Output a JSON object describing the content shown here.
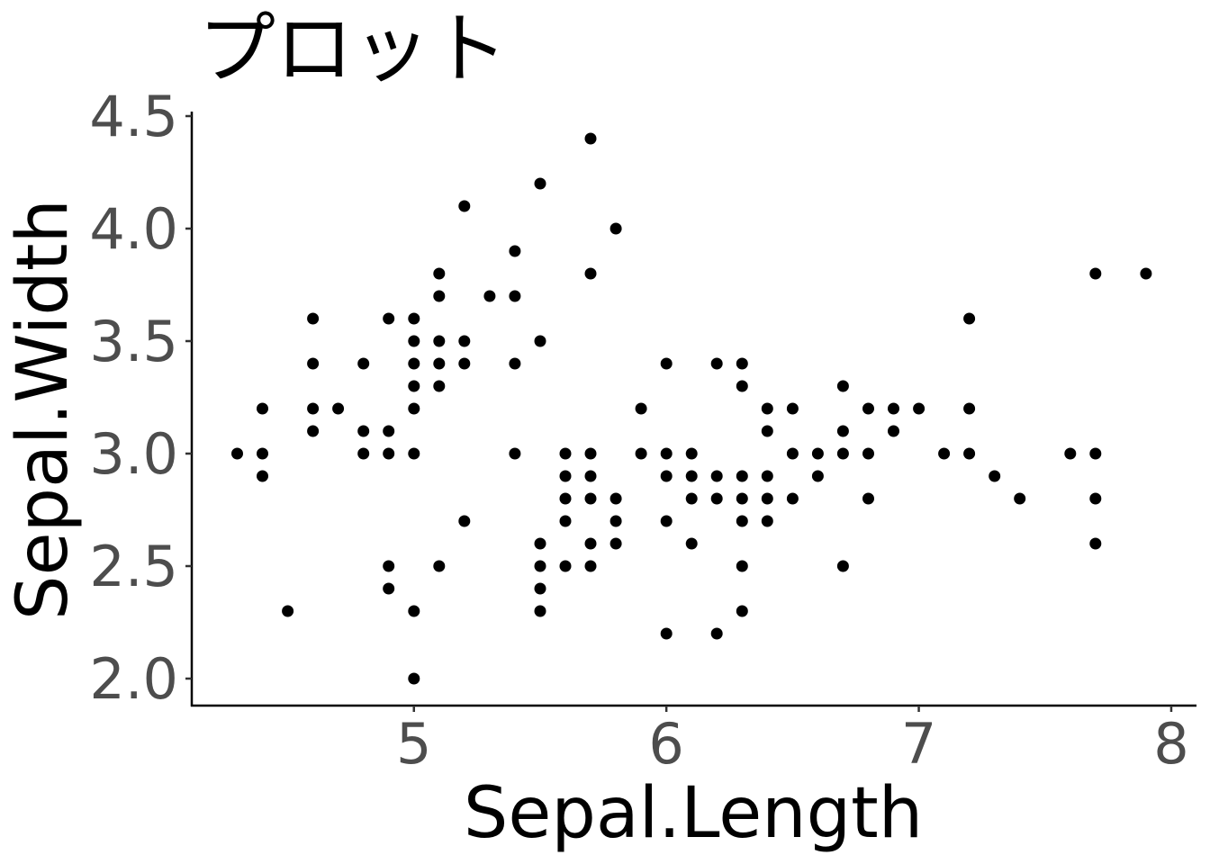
{
  "chart_data": {
    "type": "scatter",
    "title": "プロット",
    "xlabel": "Sepal.Length",
    "ylabel": "Sepal.Width",
    "xlim": [
      4.12,
      8.1
    ],
    "ylim": [
      1.88,
      4.52
    ],
    "x_ticks": [
      5,
      6,
      7,
      8
    ],
    "y_ticks": [
      2.0,
      2.5,
      3.0,
      3.5,
      4.0,
      4.5
    ],
    "x_tick_labels": [
      "5",
      "6",
      "7",
      "8"
    ],
    "y_tick_labels": [
      "2.0",
      "2.5",
      "3.0",
      "3.5",
      "4.0",
      "4.5"
    ],
    "grid": false,
    "point_color": "#000000",
    "points": [
      [
        4.3,
        3.0
      ],
      [
        4.4,
        3.2
      ],
      [
        4.4,
        3.0
      ],
      [
        4.4,
        2.9
      ],
      [
        4.5,
        2.3
      ],
      [
        4.6,
        3.6
      ],
      [
        4.6,
        3.4
      ],
      [
        4.6,
        3.2
      ],
      [
        4.6,
        3.1
      ],
      [
        4.7,
        3.2
      ],
      [
        4.8,
        3.4
      ],
      [
        4.8,
        3.1
      ],
      [
        4.8,
        3.0
      ],
      [
        4.9,
        3.6
      ],
      [
        4.9,
        3.1
      ],
      [
        4.9,
        3.0
      ],
      [
        4.9,
        2.5
      ],
      [
        4.9,
        2.4
      ],
      [
        5.0,
        3.6
      ],
      [
        5.0,
        3.5
      ],
      [
        5.0,
        3.4
      ],
      [
        5.0,
        3.3
      ],
      [
        5.0,
        3.2
      ],
      [
        5.0,
        3.0
      ],
      [
        5.0,
        2.3
      ],
      [
        5.0,
        2.0
      ],
      [
        5.1,
        3.8
      ],
      [
        5.1,
        3.7
      ],
      [
        5.1,
        3.5
      ],
      [
        5.1,
        3.4
      ],
      [
        5.1,
        3.3
      ],
      [
        5.1,
        2.5
      ],
      [
        5.2,
        4.1
      ],
      [
        5.2,
        3.5
      ],
      [
        5.2,
        3.4
      ],
      [
        5.2,
        2.7
      ],
      [
        5.3,
        3.7
      ],
      [
        5.4,
        3.9
      ],
      [
        5.4,
        3.7
      ],
      [
        5.4,
        3.4
      ],
      [
        5.4,
        3.0
      ],
      [
        5.5,
        4.2
      ],
      [
        5.5,
        3.5
      ],
      [
        5.5,
        2.6
      ],
      [
        5.5,
        2.5
      ],
      [
        5.5,
        2.4
      ],
      [
        5.5,
        2.3
      ],
      [
        5.6,
        3.0
      ],
      [
        5.6,
        2.9
      ],
      [
        5.6,
        2.8
      ],
      [
        5.6,
        2.7
      ],
      [
        5.6,
        2.5
      ],
      [
        5.7,
        4.4
      ],
      [
        5.7,
        3.8
      ],
      [
        5.7,
        3.0
      ],
      [
        5.7,
        2.9
      ],
      [
        5.7,
        2.8
      ],
      [
        5.7,
        2.6
      ],
      [
        5.7,
        2.5
      ],
      [
        5.8,
        4.0
      ],
      [
        5.8,
        2.8
      ],
      [
        5.8,
        2.7
      ],
      [
        5.8,
        2.6
      ],
      [
        5.9,
        3.2
      ],
      [
        5.9,
        3.0
      ],
      [
        6.0,
        3.4
      ],
      [
        6.0,
        3.0
      ],
      [
        6.0,
        2.9
      ],
      [
        6.0,
        2.7
      ],
      [
        6.0,
        2.2
      ],
      [
        6.1,
        3.0
      ],
      [
        6.1,
        2.9
      ],
      [
        6.1,
        2.8
      ],
      [
        6.1,
        2.6
      ],
      [
        6.2,
        3.4
      ],
      [
        6.2,
        2.9
      ],
      [
        6.2,
        2.8
      ],
      [
        6.2,
        2.2
      ],
      [
        6.3,
        3.4
      ],
      [
        6.3,
        3.3
      ],
      [
        6.3,
        2.9
      ],
      [
        6.3,
        2.8
      ],
      [
        6.3,
        2.7
      ],
      [
        6.3,
        2.5
      ],
      [
        6.3,
        2.3
      ],
      [
        6.4,
        3.2
      ],
      [
        6.4,
        3.1
      ],
      [
        6.4,
        2.9
      ],
      [
        6.4,
        2.8
      ],
      [
        6.4,
        2.7
      ],
      [
        6.5,
        3.2
      ],
      [
        6.5,
        3.0
      ],
      [
        6.5,
        2.8
      ],
      [
        6.6,
        3.0
      ],
      [
        6.6,
        2.9
      ],
      [
        6.7,
        3.3
      ],
      [
        6.7,
        3.1
      ],
      [
        6.7,
        3.0
      ],
      [
        6.7,
        2.5
      ],
      [
        6.8,
        3.2
      ],
      [
        6.8,
        3.0
      ],
      [
        6.8,
        2.8
      ],
      [
        6.9,
        3.2
      ],
      [
        6.9,
        3.1
      ],
      [
        7.0,
        3.2
      ],
      [
        7.1,
        3.0
      ],
      [
        7.2,
        3.6
      ],
      [
        7.2,
        3.2
      ],
      [
        7.2,
        3.0
      ],
      [
        7.3,
        2.9
      ],
      [
        7.4,
        2.8
      ],
      [
        7.6,
        3.0
      ],
      [
        7.7,
        3.8
      ],
      [
        7.7,
        3.0
      ],
      [
        7.7,
        2.8
      ],
      [
        7.7,
        2.6
      ],
      [
        7.9,
        3.8
      ]
    ]
  }
}
